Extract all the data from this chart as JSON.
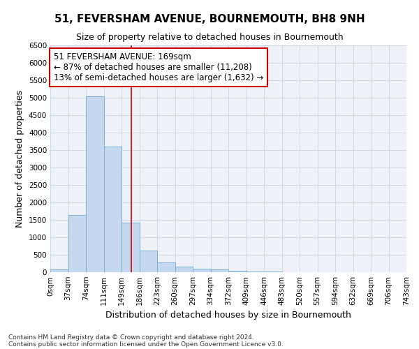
{
  "title": "51, FEVERSHAM AVENUE, BOURNEMOUTH, BH8 9NH",
  "subtitle": "Size of property relative to detached houses in Bournemouth",
  "xlabel": "Distribution of detached houses by size in Bournemouth",
  "ylabel": "Number of detached properties",
  "footer1": "Contains HM Land Registry data © Crown copyright and database right 2024.",
  "footer2": "Contains public sector information licensed under the Open Government Licence v3.0.",
  "bin_labels": [
    "0sqm",
    "37sqm",
    "74sqm",
    "111sqm",
    "149sqm",
    "186sqm",
    "223sqm",
    "260sqm",
    "297sqm",
    "334sqm",
    "372sqm",
    "409sqm",
    "446sqm",
    "483sqm",
    "520sqm",
    "557sqm",
    "594sqm",
    "632sqm",
    "669sqm",
    "706sqm",
    "743sqm"
  ],
  "bar_values": [
    75,
    1650,
    5050,
    3600,
    1420,
    620,
    290,
    155,
    105,
    75,
    50,
    30,
    20,
    10,
    0,
    0,
    0,
    0,
    0,
    0
  ],
  "bar_color": "#c5d8f0",
  "bar_edge_color": "#7bafd4",
  "vline_x": 4.55,
  "vline_color": "#cc0000",
  "annotation_line1": "51 FEVERSHAM AVENUE: 169sqm",
  "annotation_line2": "← 87% of detached houses are smaller (11,208)",
  "annotation_line3": "13% of semi-detached houses are larger (1,632) →",
  "annotation_box_color": "#ffffff",
  "annotation_box_edge_color": "#cc0000",
  "ylim": [
    0,
    6500
  ],
  "yticks": [
    0,
    500,
    1000,
    1500,
    2000,
    2500,
    3000,
    3500,
    4000,
    4500,
    5000,
    5500,
    6000,
    6500
  ],
  "grid_color": "#d0d8e8",
  "background_color": "#eef2f8",
  "title_fontsize": 11,
  "subtitle_fontsize": 9,
  "axis_label_fontsize": 9,
  "tick_fontsize": 7.5,
  "annotation_fontsize": 8.5,
  "footer_fontsize": 6.5
}
